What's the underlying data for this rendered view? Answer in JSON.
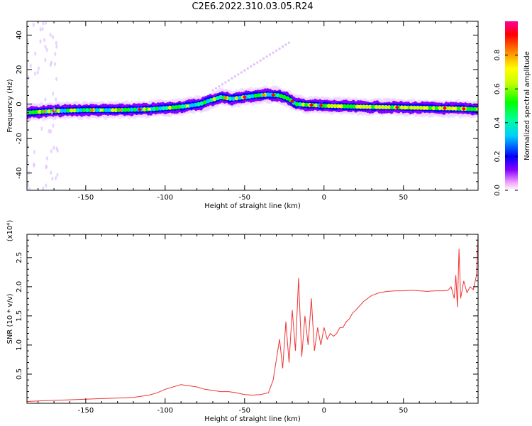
{
  "figure": {
    "title": "C2E6.2022.310.03.05.R24"
  },
  "chart_data": [
    {
      "type": "heatmap",
      "title": "C2E6.2022.310.03.05.R24",
      "xlabel": "Height of straight line (km)",
      "ylabel": "Frequency (Hz)",
      "xlim": [
        -187,
        97
      ],
      "ylim": [
        -50,
        48
      ],
      "x_ticks": [
        -150,
        -100,
        -50,
        0,
        50
      ],
      "y_ticks": [
        -40,
        -20,
        0,
        20,
        40
      ],
      "colorbar": {
        "label": "Normalized spectral amplitude",
        "range": [
          0,
          1
        ],
        "ticks": [
          0.0,
          0.2,
          0.4,
          0.6,
          0.8
        ],
        "colormap": [
          "#ffffff",
          "#ee99ff",
          "#8800ff",
          "#0000ff",
          "#00ccff",
          "#00ff99",
          "#00ff00",
          "#ccff00",
          "#ffff00",
          "#ff8800",
          "#ff0000",
          "#ff0099"
        ]
      },
      "ridge": {
        "x": [
          -187,
          -170,
          -150,
          -130,
          -110,
          -95,
          -85,
          -78,
          -72,
          -65,
          -58,
          -50,
          -42,
          -35,
          -28,
          -22,
          -18,
          -10,
          0,
          20,
          50,
          80,
          97
        ],
        "freq": [
          -5,
          -4,
          -3.5,
          -3.5,
          -3,
          -2,
          -1,
          0,
          2,
          4,
          3,
          4,
          5,
          5.5,
          5,
          3,
          0,
          -0.5,
          -1,
          -1.5,
          -2,
          -2.5,
          -3
        ]
      }
    },
    {
      "type": "line",
      "xlabel": "Height of straight line (km)",
      "ylabel": "SNR (10 * v/v)",
      "y_scale_label": "(x10⁴)",
      "xlim": [
        -187,
        97
      ],
      "ylim": [
        0,
        2.9
      ],
      "x_ticks": [
        -150,
        -100,
        -50,
        0,
        50
      ],
      "y_ticks": [
        0.5,
        1.0,
        1.5,
        2.0,
        2.5
      ],
      "series_color": "#ee3333",
      "series": [
        {
          "name": "",
          "x": [
            -187,
            -180,
            -170,
            -160,
            -150,
            -140,
            -130,
            -120,
            -110,
            -105,
            -100,
            -95,
            -90,
            -85,
            -80,
            -75,
            -70,
            -65,
            -60,
            -55,
            -50,
            -45,
            -40,
            -35,
            -32,
            -30,
            -28,
            -26,
            -24,
            -22,
            -20,
            -18,
            -16,
            -14,
            -12,
            -10,
            -8,
            -6,
            -4,
            -2,
            0,
            2,
            4,
            6,
            8,
            10,
            12,
            14,
            16,
            18,
            20,
            25,
            30,
            35,
            40,
            45,
            50,
            55,
            60,
            65,
            70,
            75,
            78,
            80,
            82,
            83,
            84,
            85,
            86,
            88,
            90,
            92,
            94,
            96,
            97
          ],
          "values": [
            0.03,
            0.04,
            0.05,
            0.06,
            0.07,
            0.08,
            0.09,
            0.1,
            0.14,
            0.18,
            0.24,
            0.28,
            0.32,
            0.3,
            0.28,
            0.24,
            0.22,
            0.2,
            0.2,
            0.18,
            0.15,
            0.14,
            0.15,
            0.18,
            0.4,
            0.75,
            1.1,
            0.6,
            1.4,
            0.7,
            1.6,
            0.9,
            2.15,
            0.8,
            1.5,
            1.0,
            1.8,
            0.9,
            1.3,
            1.0,
            1.3,
            1.1,
            1.2,
            1.15,
            1.2,
            1.3,
            1.3,
            1.4,
            1.45,
            1.55,
            1.6,
            1.75,
            1.85,
            1.9,
            1.92,
            1.93,
            1.93,
            1.94,
            1.93,
            1.92,
            1.93,
            1.93,
            1.94,
            2.0,
            1.8,
            2.2,
            1.65,
            2.65,
            1.8,
            2.1,
            1.9,
            2.0,
            1.95,
            2.2,
            2.9
          ]
        }
      ]
    }
  ]
}
